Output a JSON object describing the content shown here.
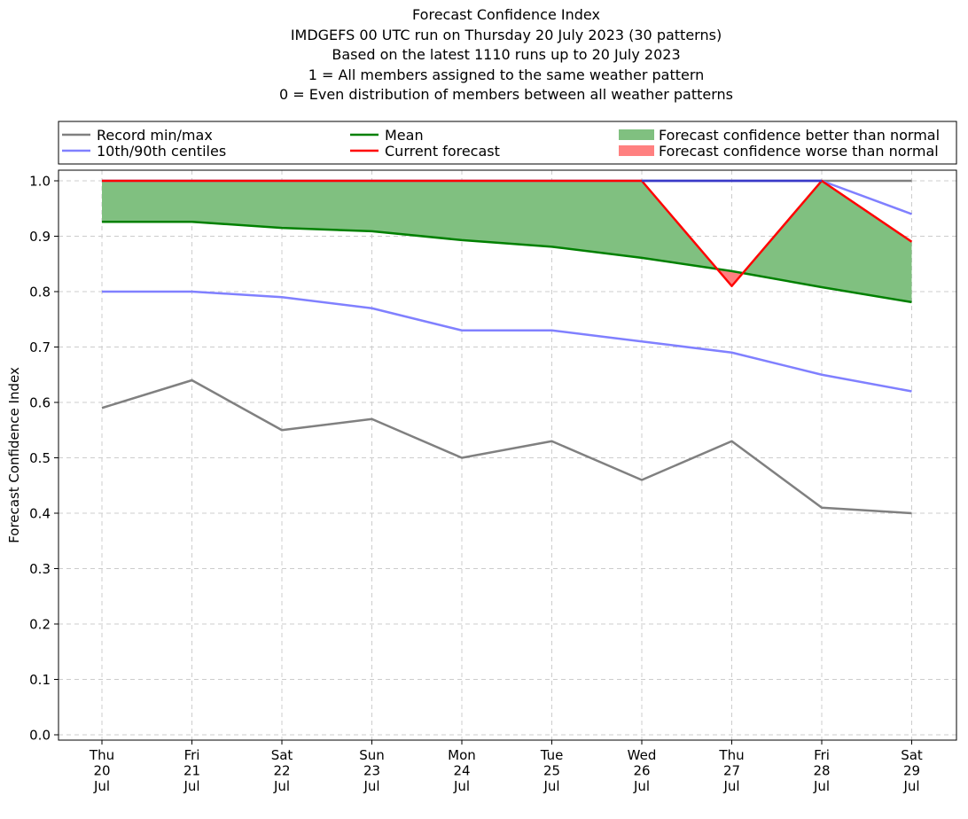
{
  "chart_data": {
    "type": "line",
    "title_lines": [
      "Forecast Confidence Index",
      "IMDGEFS 00 UTC run on Thursday 20 July 2023 (30 patterns)",
      "Based on the latest 1110 runs up to 20 July 2023",
      "1 = All members assigned to the same weather pattern",
      "0 = Even distribution of members between all weather patterns"
    ],
    "ylabel": "Forecast Confidence Index",
    "ylim": [
      0.0,
      1.0
    ],
    "yticks": [
      "0.0",
      "0.1",
      "0.2",
      "0.3",
      "0.4",
      "0.5",
      "0.6",
      "0.7",
      "0.8",
      "0.9",
      "1.0"
    ],
    "grid": true,
    "legend_placement": "top",
    "categories": [
      [
        "Thu",
        "20",
        "Jul"
      ],
      [
        "Fri",
        "21",
        "Jul"
      ],
      [
        "Sat",
        "22",
        "Jul"
      ],
      [
        "Sun",
        "23",
        "Jul"
      ],
      [
        "Mon",
        "24",
        "Jul"
      ],
      [
        "Tue",
        "25",
        "Jul"
      ],
      [
        "Wed",
        "26",
        "Jul"
      ],
      [
        "Thu",
        "27",
        "Jul"
      ],
      [
        "Fri",
        "28",
        "Jul"
      ],
      [
        "Sat",
        "29",
        "Jul"
      ]
    ],
    "series": [
      {
        "name": "Record min/max",
        "role": "record_min",
        "color": "#808080",
        "values": [
          0.59,
          0.64,
          0.55,
          0.57,
          0.5,
          0.53,
          0.46,
          0.53,
          0.41,
          0.4
        ]
      },
      {
        "name": "Record min/max",
        "role": "record_max",
        "color": "#808080",
        "values": [
          1.0,
          1.0,
          1.0,
          1.0,
          1.0,
          1.0,
          1.0,
          1.0,
          1.0,
          1.0
        ]
      },
      {
        "name": "10th/90th centiles",
        "role": "p10",
        "color": "#8080ff",
        "values": [
          0.8,
          0.8,
          0.79,
          0.77,
          0.73,
          0.73,
          0.71,
          0.69,
          0.65,
          0.62
        ]
      },
      {
        "name": "10th/90th centiles",
        "role": "p90",
        "color": "#8080ff",
        "values": [
          1.0,
          1.0,
          1.0,
          1.0,
          1.0,
          1.0,
          1.0,
          1.0,
          1.0,
          0.94
        ]
      },
      {
        "name": "Mean",
        "role": "mean",
        "color": "#008000",
        "values": [
          0.926,
          0.926,
          0.915,
          0.909,
          0.893,
          0.881,
          0.861,
          0.837,
          0.808,
          0.781
        ]
      },
      {
        "name": "Current forecast",
        "role": "current",
        "color": "#ff0000",
        "values": [
          1.0,
          1.0,
          1.0,
          1.0,
          1.0,
          1.0,
          1.0,
          0.81,
          1.0,
          0.89
        ]
      }
    ],
    "fills": [
      {
        "name": "Forecast confidence better than normal",
        "color": "#80c080"
      },
      {
        "name": "Forecast confidence worse than normal",
        "color": "#ff8080"
      }
    ],
    "legend": [
      {
        "label": "Record min/max",
        "kind": "line",
        "color": "#808080"
      },
      {
        "label": "Mean",
        "kind": "line",
        "color": "#008000"
      },
      {
        "label": "Forecast confidence better than normal",
        "kind": "patch",
        "color": "#80c080"
      },
      {
        "label": "10th/90th centiles",
        "kind": "line",
        "color": "#8080ff"
      },
      {
        "label": "Current forecast",
        "kind": "line",
        "color": "#ff0000"
      },
      {
        "label": "Forecast confidence worse than normal",
        "kind": "patch",
        "color": "#ff8080"
      }
    ]
  }
}
